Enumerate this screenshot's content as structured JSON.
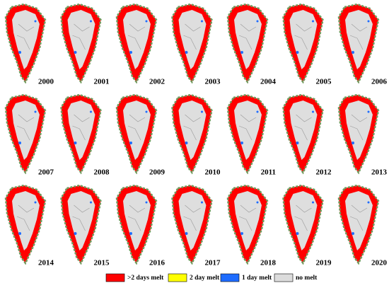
{
  "panels": [
    "2000",
    "2001",
    "2002",
    "2003",
    "2004",
    "2005",
    "2006",
    "2007",
    "2008",
    "2009",
    "2010",
    "2011",
    "2012",
    "2013",
    "2014",
    "2015",
    "2016",
    "2017",
    "2018",
    "2019",
    "2020"
  ],
  "legend": [
    {
      "label": ">2 days melt",
      "color": "#ff0000"
    },
    {
      "label": "2 day melt",
      "color": "#ffff00"
    },
    {
      "label": "1 day melt",
      "color": "#1e6cff"
    },
    {
      "label": "no melt",
      "color": "#dcdcdc"
    }
  ]
}
